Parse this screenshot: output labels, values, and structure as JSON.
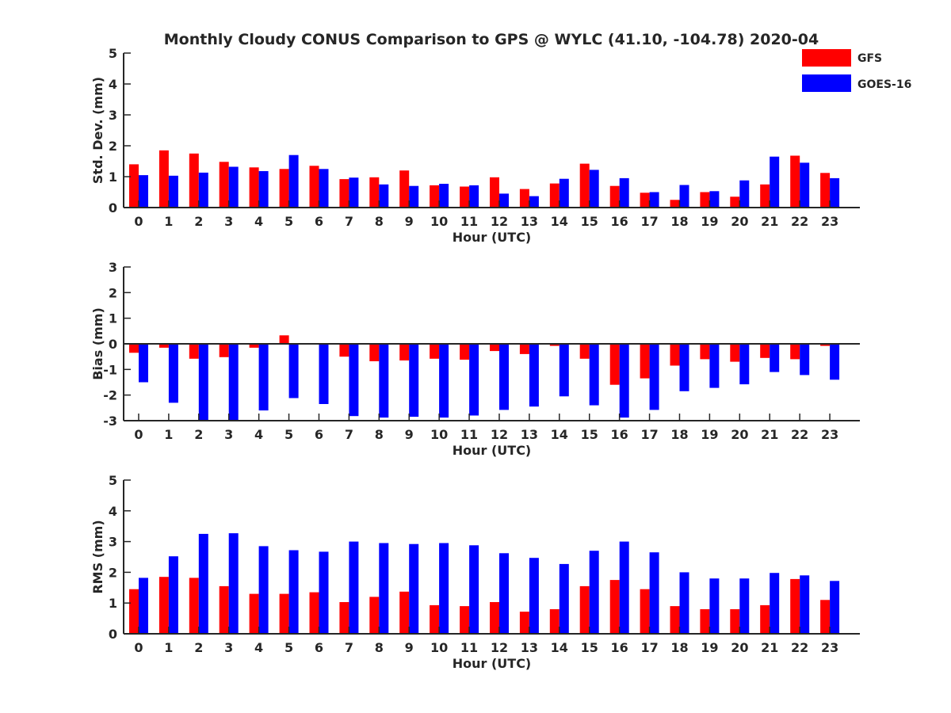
{
  "title": "Monthly Cloudy CONUS Comparison to GPS @ WYLC (41.10, -104.78) 2020-04",
  "legend": {
    "placement": "top-right",
    "items": [
      {
        "label": "GFS",
        "color": "#ff0000"
      },
      {
        "label": "GOES-16",
        "color": "#0000ff"
      }
    ]
  },
  "chart_data": [
    {
      "type": "bar",
      "xlabel": "Hour (UTC)",
      "ylabel": "Std. Dev. (mm)",
      "ylim": [
        0,
        5
      ],
      "yticks": [
        0,
        1,
        2,
        3,
        4,
        5
      ],
      "categories": [
        "0",
        "1",
        "2",
        "3",
        "4",
        "5",
        "6",
        "7",
        "8",
        "9",
        "10",
        "11",
        "12",
        "13",
        "14",
        "15",
        "16",
        "17",
        "18",
        "19",
        "20",
        "21",
        "22",
        "23"
      ],
      "series": [
        {
          "name": "GFS",
          "color": "#ff0000",
          "values": [
            1.4,
            1.85,
            1.75,
            1.48,
            1.3,
            1.25,
            1.35,
            0.92,
            0.98,
            1.2,
            0.72,
            0.68,
            0.98,
            0.6,
            0.78,
            1.42,
            0.7,
            0.48,
            0.25,
            0.5,
            0.35,
            0.75,
            1.68,
            1.12
          ]
        },
        {
          "name": "GOES-16",
          "color": "#0000ff",
          "values": [
            1.05,
            1.03,
            1.13,
            1.32,
            1.18,
            1.7,
            1.25,
            0.97,
            0.75,
            0.7,
            0.77,
            0.72,
            0.45,
            0.37,
            0.93,
            1.22,
            0.95,
            0.5,
            0.73,
            0.53,
            0.88,
            1.65,
            1.45,
            0.95
          ]
        }
      ]
    },
    {
      "type": "bar",
      "xlabel": "Hour (UTC)",
      "ylabel": "Bias (mm)",
      "ylim": [
        -3,
        3
      ],
      "yticks": [
        -3,
        -2,
        -1,
        0,
        1,
        2,
        3
      ],
      "categories": [
        "0",
        "1",
        "2",
        "3",
        "4",
        "5",
        "6",
        "7",
        "8",
        "9",
        "10",
        "11",
        "12",
        "13",
        "14",
        "15",
        "16",
        "17",
        "18",
        "19",
        "20",
        "21",
        "22",
        "23"
      ],
      "series": [
        {
          "name": "GFS",
          "color": "#ff0000",
          "values": [
            -0.35,
            -0.15,
            -0.58,
            -0.52,
            -0.15,
            0.33,
            0.0,
            -0.5,
            -0.68,
            -0.65,
            -0.58,
            -0.62,
            -0.28,
            -0.4,
            -0.08,
            -0.58,
            -1.6,
            -1.35,
            -0.85,
            -0.6,
            -0.7,
            -0.55,
            -0.6,
            -0.08
          ]
        },
        {
          "name": "GOES-16",
          "color": "#0000ff",
          "values": [
            -1.5,
            -2.3,
            -3.0,
            -3.0,
            -2.6,
            -2.12,
            -2.35,
            -2.82,
            -2.88,
            -2.85,
            -2.88,
            -2.8,
            -2.58,
            -2.45,
            -2.05,
            -2.4,
            -2.88,
            -2.58,
            -1.85,
            -1.72,
            -1.58,
            -1.1,
            -1.22,
            -1.4
          ]
        }
      ]
    },
    {
      "type": "bar",
      "xlabel": "Hour (UTC)",
      "ylabel": "RMS (mm)",
      "ylim": [
        0,
        5
      ],
      "yticks": [
        0,
        1,
        2,
        3,
        4,
        5
      ],
      "categories": [
        "0",
        "1",
        "2",
        "3",
        "4",
        "5",
        "6",
        "7",
        "8",
        "9",
        "10",
        "11",
        "12",
        "13",
        "14",
        "15",
        "16",
        "17",
        "18",
        "19",
        "20",
        "21",
        "22",
        "23"
      ],
      "series": [
        {
          "name": "GFS",
          "color": "#ff0000",
          "values": [
            1.45,
            1.85,
            1.82,
            1.55,
            1.3,
            1.3,
            1.35,
            1.03,
            1.2,
            1.37,
            0.93,
            0.9,
            1.03,
            0.72,
            0.8,
            1.55,
            1.75,
            1.45,
            0.9,
            0.8,
            0.8,
            0.93,
            1.78,
            1.1
          ]
        },
        {
          "name": "GOES-16",
          "color": "#0000ff",
          "values": [
            1.82,
            2.52,
            3.25,
            3.27,
            2.85,
            2.72,
            2.67,
            3.0,
            2.95,
            2.92,
            2.95,
            2.88,
            2.62,
            2.47,
            2.27,
            2.7,
            3.0,
            2.65,
            2.0,
            1.8,
            1.8,
            1.98,
            1.9,
            1.72
          ]
        }
      ]
    }
  ]
}
